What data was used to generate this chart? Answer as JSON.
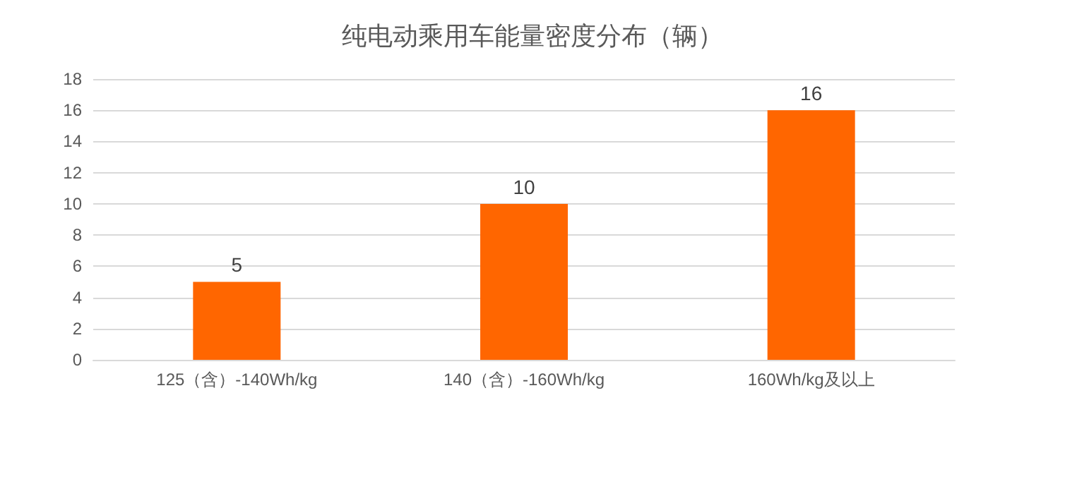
{
  "chart_data": {
    "type": "bar",
    "title": "纯电动乘用车能量密度分布（辆）",
    "categories": [
      "125（含）-140Wh/kg",
      "140（含）-160Wh/kg",
      "160Wh/kg及以上"
    ],
    "values": [
      5,
      10,
      16
    ],
    "color": "#ff6600",
    "ylim": [
      0,
      18
    ],
    "yticks": [
      0,
      2,
      4,
      6,
      8,
      10,
      12,
      14,
      16,
      18
    ],
    "grid": "y",
    "data_labels": true
  }
}
